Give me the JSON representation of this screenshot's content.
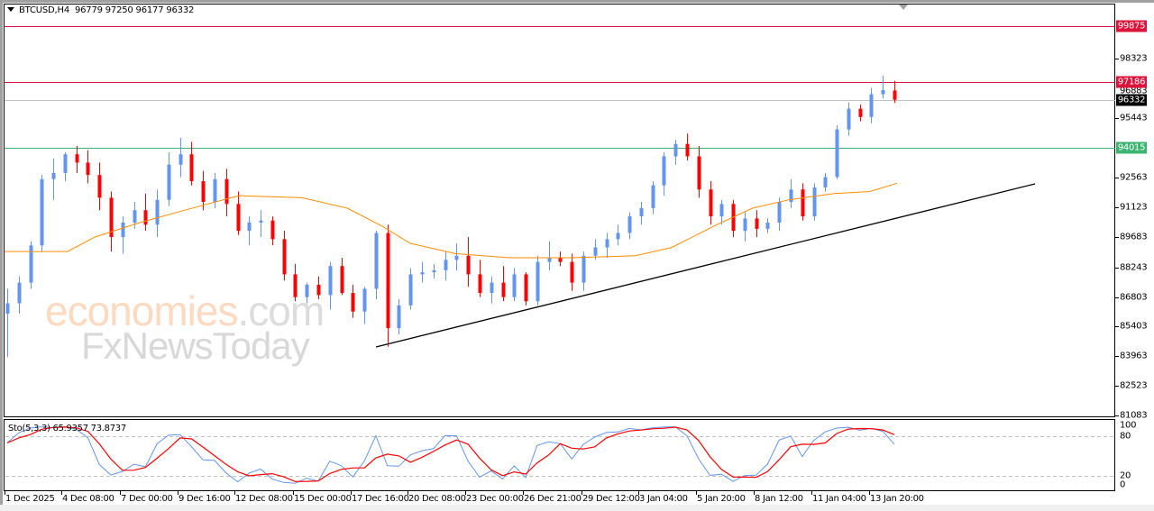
{
  "header": {
    "symbol": "BTCUSD,H4",
    "ohlc": "96779 97250 96177 96332",
    "title_full": "BTCUSD,H4  96779 97250 96177 96332"
  },
  "colors": {
    "bull": "#6495ed",
    "bear": "#ff0000",
    "ma": "#ff8c00",
    "resistance": "#dc143c",
    "support": "#3cb371",
    "current": "#c0c0c0",
    "trendline": "#000000",
    "stoch_main": "#6495ed",
    "stoch_signal": "#ff0000"
  },
  "price_axis": {
    "labels": [
      "98323",
      "95443",
      "92563",
      "91123",
      "89683",
      "88243",
      "86803",
      "85403",
      "83963",
      "82523",
      "81083"
    ],
    "tags": [
      {
        "value": "99875",
        "color": "#dc143c",
        "text_color": "#ffffff"
      },
      {
        "value": "97186",
        "color": "#dc143c",
        "text_color": "#ffffff"
      },
      {
        "value": "96332",
        "color": "#000000",
        "text_color": "#ffffff"
      },
      {
        "value": "94015",
        "color": "#3cb371",
        "text_color": "#ffffff"
      }
    ],
    "partial_labels": [
      "96883"
    ]
  },
  "time_axis": {
    "labels": [
      "1 Dec 2025",
      "4 Dec 08:00",
      "7 Dec 00:00",
      "9 Dec 16:00",
      "12 Dec 08:00",
      "15 Dec 00:00",
      "17 Dec 16:00",
      "20 Dec 08:00",
      "23 Dec 00:00",
      "26 Dec 21:00",
      "29 Dec 12:00",
      "3 Jan 04:00",
      "5 Jan 20:00",
      "8 Jan 12:00",
      "11 Jan 04:00",
      "13 Jan 20:00"
    ]
  },
  "stochastic": {
    "label": "Sto(5,3,3) 65.9357 73.8737",
    "levels": [
      "100",
      "80",
      "20",
      "0"
    ]
  },
  "watermark": {
    "line1": "economies",
    "line1_suffix": ".com",
    "line2": "FxNewsToday"
  },
  "chart_data": {
    "type": "candlestick",
    "title": "BTCUSD,H4",
    "instrument": "BTCUSD",
    "timeframe": "H4",
    "last_ohlc": {
      "open": 96779,
      "high": 97250,
      "low": 96177,
      "close": 96332
    },
    "x_tick_labels": [
      "1 Dec 2025",
      "4 Dec 08:00",
      "7 Dec 00:00",
      "9 Dec 16:00",
      "12 Dec 08:00",
      "15 Dec 00:00",
      "17 Dec 16:00",
      "20 Dec 08:00",
      "23 Dec 00:00",
      "26 Dec 21:00",
      "29 Dec 12:00",
      "3 Jan 04:00",
      "5 Jan 20:00",
      "8 Jan 12:00",
      "11 Jan 04:00",
      "13 Jan 20:00"
    ],
    "y_tick_labels": [
      98323,
      95443,
      92563,
      91123,
      89683,
      88243,
      86803,
      85403,
      83963,
      82523,
      81083
    ],
    "ylim": [
      81083,
      100500
    ],
    "horizontal_lines": [
      {
        "name": "resistance-2",
        "value": 99875,
        "color": "#dc143c"
      },
      {
        "name": "resistance-1",
        "value": 97186,
        "color": "#dc143c"
      },
      {
        "name": "current-price",
        "value": 96332,
        "color": "#c0c0c0"
      },
      {
        "name": "support",
        "value": 94015,
        "color": "#3cb371"
      }
    ],
    "trendline": {
      "from": {
        "label": "17 Dec 16:00",
        "value": 84400
      },
      "to": {
        "label": "after 13 Jan 20:00",
        "value": 92440
      }
    },
    "moving_average": {
      "color": "#ff8c00",
      "approx_path": [
        [
          0,
          89000
        ],
        [
          70,
          89000
        ],
        [
          100,
          89700
        ],
        [
          150,
          90400
        ],
        [
          200,
          91000
        ],
        [
          260,
          91700
        ],
        [
          330,
          91600
        ],
        [
          380,
          91100
        ],
        [
          420,
          90200
        ],
        [
          450,
          89400
        ],
        [
          500,
          88900
        ],
        [
          560,
          88700
        ],
        [
          630,
          88700
        ],
        [
          700,
          88800
        ],
        [
          740,
          89200
        ],
        [
          790,
          90300
        ],
        [
          830,
          91100
        ],
        [
          870,
          91500
        ],
        [
          920,
          91800
        ],
        [
          960,
          91900
        ],
        [
          990,
          92300
        ]
      ]
    },
    "candles_ohlc_sample": [
      [
        86000,
        87200,
        83900,
        86500
      ],
      [
        86500,
        87800,
        86000,
        87500
      ],
      [
        87500,
        89500,
        87200,
        89300
      ],
      [
        89300,
        92700,
        89000,
        92500
      ],
      [
        92500,
        93500,
        91500,
        92800
      ],
      [
        92800,
        93800,
        92400,
        93700
      ],
      [
        93700,
        94100,
        92800,
        93300
      ],
      [
        93300,
        93900,
        92300,
        92700
      ],
      [
        92700,
        93300,
        91000,
        91600
      ],
      [
        91600,
        91900,
        89000,
        89700
      ],
      [
        89700,
        90700,
        88900,
        90400
      ],
      [
        90400,
        91400,
        90100,
        91000
      ],
      [
        91000,
        91800,
        90000,
        90300
      ],
      [
        90300,
        92000,
        89700,
        91500
      ],
      [
        91500,
        93800,
        91200,
        93200
      ],
      [
        93200,
        94500,
        92600,
        93700
      ],
      [
        93700,
        94300,
        92200,
        92400
      ],
      [
        92400,
        92900,
        91000,
        91400
      ],
      [
        91400,
        92800,
        91100,
        92500
      ],
      [
        92500,
        93000,
        90700,
        91300
      ],
      [
        91300,
        91900,
        89800,
        90000
      ],
      [
        90000,
        90700,
        89300,
        90400
      ],
      [
        90400,
        91000,
        89700,
        90500
      ],
      [
        90500,
        90700,
        89300,
        89600
      ],
      [
        89600,
        90000,
        87600,
        87900
      ],
      [
        87900,
        88400,
        86600,
        86800
      ],
      [
        86800,
        87500,
        86500,
        87400
      ],
      [
        87400,
        87800,
        86700,
        86900
      ],
      [
        86900,
        88500,
        86200,
        88300
      ],
      [
        88300,
        88700,
        86900,
        87000
      ],
      [
        87000,
        87400,
        85800,
        86100
      ],
      [
        86100,
        87300,
        85500,
        87200
      ],
      [
        87200,
        90000,
        86700,
        89900
      ],
      [
        89900,
        90300,
        84400,
        85300
      ],
      [
        85300,
        86700,
        85000,
        86400
      ],
      [
        86400,
        88200,
        86200,
        87900
      ],
      [
        87900,
        88500,
        87500,
        88000
      ],
      [
        88000,
        88400,
        87700,
        88100
      ],
      [
        88100,
        89000,
        87600,
        88600
      ],
      [
        88600,
        89400,
        88100,
        88800
      ],
      [
        88800,
        89700,
        87300,
        87900
      ],
      [
        87900,
        88600,
        86800,
        87000
      ],
      [
        87000,
        87800,
        86500,
        87500
      ],
      [
        87500,
        88300,
        86600,
        86800
      ],
      [
        86800,
        88200,
        86600,
        87900
      ],
      [
        87900,
        88000,
        86400,
        86600
      ],
      [
        86600,
        88800,
        86400,
        88500
      ],
      [
        88500,
        89500,
        88100,
        88700
      ],
      [
        88700,
        89000,
        88300,
        88500
      ],
      [
        88500,
        88900,
        87100,
        87500
      ],
      [
        87500,
        89000,
        87100,
        88800
      ],
      [
        88800,
        89600,
        88600,
        89200
      ],
      [
        89200,
        89900,
        88700,
        89600
      ],
      [
        89600,
        90300,
        89300,
        89900
      ],
      [
        89900,
        90900,
        89600,
        90700
      ],
      [
        90700,
        91400,
        90300,
        91100
      ],
      [
        91100,
        92400,
        90800,
        92200
      ],
      [
        92200,
        93800,
        91700,
        93600
      ],
      [
        93600,
        94400,
        93200,
        94200
      ],
      [
        94200,
        94700,
        93400,
        93600
      ],
      [
        93600,
        94100,
        91600,
        92000
      ],
      [
        92000,
        92400,
        90300,
        90700
      ],
      [
        90700,
        91500,
        90300,
        91300
      ],
      [
        91300,
        91500,
        89700,
        90000
      ],
      [
        90000,
        90900,
        89500,
        90600
      ],
      [
        90600,
        91000,
        89700,
        90100
      ],
      [
        90100,
        90600,
        89900,
        90400
      ],
      [
        90400,
        91600,
        90000,
        91400
      ],
      [
        91400,
        92500,
        91100,
        92000
      ],
      [
        92000,
        92300,
        90500,
        90700
      ],
      [
        90700,
        92300,
        90500,
        92100
      ],
      [
        92100,
        92800,
        91900,
        92600
      ],
      [
        92600,
        95100,
        92500,
        94900
      ],
      [
        94900,
        96200,
        94600,
        95900
      ],
      [
        95900,
        96100,
        95300,
        95500
      ],
      [
        95500,
        96900,
        95200,
        96600
      ],
      [
        96600,
        97500,
        96400,
        96800
      ],
      [
        96779,
        97250,
        96177,
        96332
      ]
    ]
  }
}
